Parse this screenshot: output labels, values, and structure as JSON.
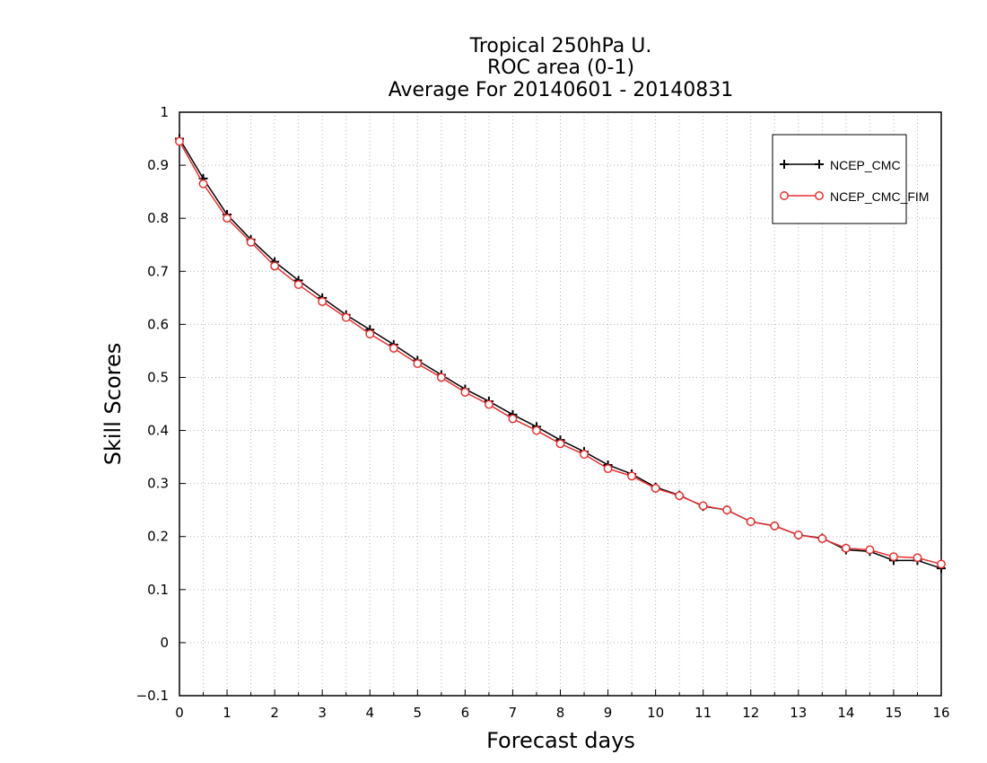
{
  "chart_data": {
    "type": "line",
    "title_lines": [
      "Tropical 250hPa U.",
      "ROC area (0-1)",
      "Average For 20140601 - 20140831"
    ],
    "xlabel": "Forecast days",
    "ylabel": "Skill Scores",
    "xlim": [
      0,
      16
    ],
    "ylim": [
      -0.1,
      1
    ],
    "x_ticks": [
      "0",
      "1",
      "2",
      "3",
      "4",
      "5",
      "6",
      "7",
      "8",
      "9",
      "10",
      "11",
      "12",
      "13",
      "14",
      "15",
      "16"
    ],
    "y_ticks": [
      "-0.1",
      "0",
      "0.1",
      "0.2",
      "0.3",
      "0.4",
      "0.5",
      "0.6",
      "0.7",
      "0.8",
      "0.9",
      "1"
    ],
    "grid": true,
    "legend_position": "top-right",
    "x": [
      0,
      0.5,
      1,
      1.5,
      2,
      2.5,
      3,
      3.5,
      4,
      4.5,
      5,
      5.5,
      6,
      6.5,
      7,
      7.5,
      8,
      8.5,
      9,
      9.5,
      10,
      10.5,
      11,
      11.5,
      12,
      12.5,
      13,
      13.5,
      14,
      14.5,
      15,
      15.5,
      16
    ],
    "series": [
      {
        "name": "NCEP_CMC",
        "color": "#000000",
        "marker": "plus",
        "values": [
          0.95,
          0.875,
          0.807,
          0.76,
          0.718,
          0.683,
          0.65,
          0.618,
          0.59,
          0.562,
          0.532,
          0.505,
          0.478,
          0.455,
          0.43,
          0.407,
          0.382,
          0.36,
          0.335,
          0.318,
          0.293,
          0.278,
          0.257,
          0.25,
          0.228,
          0.22,
          0.203,
          0.197,
          0.175,
          0.172,
          0.155,
          0.155,
          0.14
        ]
      },
      {
        "name": "NCEP_CMC_FIM",
        "color": "#e83030",
        "marker": "circle",
        "values": [
          0.945,
          0.865,
          0.8,
          0.755,
          0.71,
          0.675,
          0.643,
          0.613,
          0.582,
          0.555,
          0.526,
          0.5,
          0.472,
          0.449,
          0.422,
          0.4,
          0.375,
          0.355,
          0.328,
          0.314,
          0.291,
          0.277,
          0.258,
          0.25,
          0.228,
          0.22,
          0.203,
          0.196,
          0.178,
          0.175,
          0.162,
          0.16,
          0.148
        ]
      }
    ]
  }
}
